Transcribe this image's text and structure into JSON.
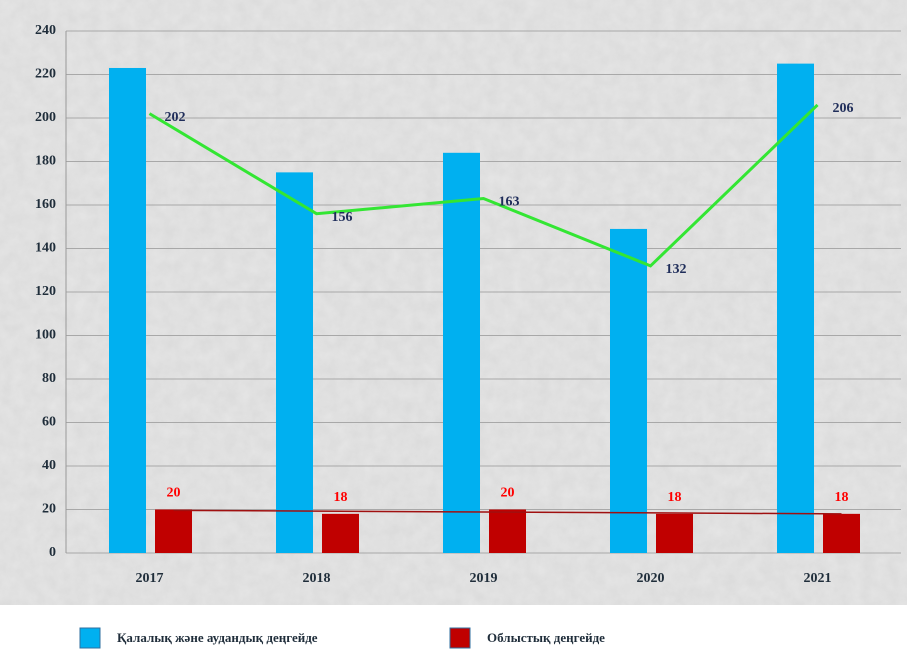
{
  "chart_data": {
    "type": "bar",
    "categories": [
      "2017",
      "2018",
      "2019",
      "2020",
      "2021"
    ],
    "series": [
      {
        "name": "Қалалық және аудандық деңгейде",
        "color": "#00b0f0",
        "values": [
          223,
          175,
          184,
          149,
          225
        ]
      },
      {
        "name": "Облыстық деңгейде",
        "color": "#c00000",
        "values": [
          20,
          18,
          20,
          18,
          18
        ],
        "data_labels": true,
        "label_color": "#ff0000",
        "trendline": true,
        "trendline_color": "#a01010"
      },
      {
        "type": "line",
        "color": "#33e633",
        "values": [
          202,
          156,
          163,
          132,
          206
        ],
        "data_labels": true,
        "label_color": "#1f2d5a"
      }
    ],
    "ylim": [
      0,
      240
    ],
    "yticks": [
      0,
      20,
      40,
      60,
      80,
      100,
      120,
      140,
      160,
      180,
      200,
      220,
      240
    ],
    "grid": true,
    "legend": "bottom"
  }
}
